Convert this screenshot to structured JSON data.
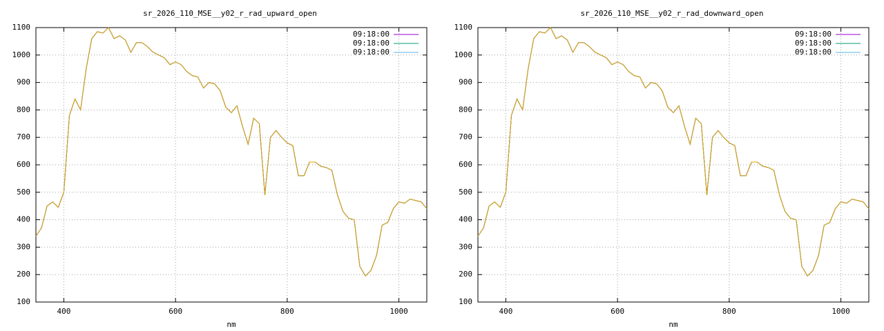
{
  "chart_data": [
    {
      "type": "line",
      "title": "sr_2026_110_MSE__y02_r_rad_upward_open",
      "x_label": "nm",
      "x": [
        350,
        360,
        370,
        380,
        390,
        400,
        410,
        420,
        430,
        440,
        450,
        460,
        470,
        480,
        490,
        500,
        510,
        520,
        530,
        540,
        550,
        560,
        570,
        580,
        590,
        600,
        610,
        620,
        630,
        640,
        650,
        660,
        670,
        680,
        690,
        700,
        710,
        720,
        730,
        740,
        750,
        760,
        770,
        780,
        790,
        800,
        810,
        820,
        830,
        840,
        850,
        860,
        870,
        880,
        890,
        900,
        910,
        920,
        930,
        940,
        950,
        960,
        970,
        980,
        990,
        1000,
        1010,
        1020,
        1030,
        1040,
        1050
      ],
      "series": [
        {
          "name": "09:18:00",
          "color": "#9400d3",
          "values": [
            340,
            370,
            450,
            465,
            445,
            500,
            780,
            840,
            800,
            950,
            1060,
            1085,
            1080,
            1100,
            1060,
            1070,
            1055,
            1010,
            1045,
            1045,
            1030,
            1010,
            1000,
            990,
            965,
            975,
            965,
            940,
            925,
            920,
            880,
            900,
            895,
            870,
            810,
            790,
            815,
            740,
            675,
            770,
            750,
            490,
            700,
            725,
            700,
            680,
            670,
            560,
            560,
            610,
            610,
            595,
            590,
            580,
            490,
            430,
            405,
            400,
            230,
            195,
            215,
            270,
            380,
            390,
            440,
            465,
            460,
            475,
            470,
            465,
            440
          ]
        },
        {
          "name": "09:18:00",
          "color": "#009e73",
          "values": [
            340,
            370,
            450,
            465,
            445,
            500,
            780,
            840,
            800,
            950,
            1060,
            1085,
            1080,
            1100,
            1060,
            1070,
            1055,
            1010,
            1045,
            1045,
            1030,
            1010,
            1000,
            990,
            965,
            975,
            965,
            940,
            925,
            920,
            880,
            900,
            895,
            870,
            810,
            790,
            815,
            740,
            675,
            770,
            750,
            490,
            700,
            725,
            700,
            680,
            670,
            560,
            560,
            610,
            610,
            595,
            590,
            580,
            490,
            430,
            405,
            400,
            230,
            195,
            215,
            270,
            380,
            390,
            440,
            465,
            460,
            475,
            470,
            465,
            440
          ]
        },
        {
          "name": "09:18:00",
          "color": "#56b4e9",
          "values": [
            340,
            370,
            450,
            465,
            445,
            500,
            780,
            840,
            800,
            950,
            1060,
            1085,
            1080,
            1100,
            1060,
            1070,
            1055,
            1010,
            1045,
            1045,
            1030,
            1010,
            1000,
            990,
            965,
            975,
            965,
            940,
            925,
            920,
            880,
            900,
            895,
            870,
            810,
            790,
            815,
            740,
            675,
            770,
            750,
            490,
            700,
            725,
            700,
            680,
            670,
            560,
            560,
            610,
            610,
            595,
            590,
            580,
            490,
            430,
            405,
            400,
            230,
            195,
            215,
            270,
            380,
            390,
            440,
            465,
            460,
            475,
            470,
            465,
            440
          ]
        },
        {
          "color": "#e69f00",
          "values": [
            340,
            370,
            450,
            465,
            445,
            500,
            780,
            840,
            800,
            950,
            1060,
            1085,
            1080,
            1100,
            1060,
            1070,
            1055,
            1010,
            1045,
            1045,
            1030,
            1010,
            1000,
            990,
            965,
            975,
            965,
            940,
            925,
            920,
            880,
            900,
            895,
            870,
            810,
            790,
            815,
            740,
            675,
            770,
            750,
            490,
            700,
            725,
            700,
            680,
            670,
            560,
            560,
            610,
            610,
            595,
            590,
            580,
            490,
            430,
            405,
            400,
            230,
            195,
            215,
            270,
            380,
            390,
            440,
            465,
            460,
            475,
            470,
            465,
            440
          ]
        }
      ],
      "xlim": [
        350,
        1050
      ],
      "ylim": [
        100,
        1100
      ],
      "xticks": [
        400,
        600,
        800,
        1000
      ],
      "yticks": [
        100,
        200,
        300,
        400,
        500,
        600,
        700,
        800,
        900,
        1000,
        1100
      ],
      "grid": true,
      "legend": "upper right"
    },
    {
      "type": "line",
      "title": "sr_2026_110_MSE__y02_r_rad_downward_open",
      "x_label": "nm",
      "x": [
        350,
        360,
        370,
        380,
        390,
        400,
        410,
        420,
        430,
        440,
        450,
        460,
        470,
        480,
        490,
        500,
        510,
        520,
        530,
        540,
        550,
        560,
        570,
        580,
        590,
        600,
        610,
        620,
        630,
        640,
        650,
        660,
        670,
        680,
        690,
        700,
        710,
        720,
        730,
        740,
        750,
        760,
        770,
        780,
        790,
        800,
        810,
        820,
        830,
        840,
        850,
        860,
        870,
        880,
        890,
        900,
        910,
        920,
        930,
        940,
        950,
        960,
        970,
        980,
        990,
        1000,
        1010,
        1020,
        1030,
        1040,
        1050
      ],
      "series": [
        {
          "name": "09:18:00",
          "color": "#9400d3",
          "values": [
            340,
            370,
            450,
            465,
            445,
            500,
            780,
            840,
            800,
            950,
            1060,
            1085,
            1080,
            1100,
            1060,
            1070,
            1055,
            1010,
            1045,
            1045,
            1030,
            1010,
            1000,
            990,
            965,
            975,
            965,
            940,
            925,
            920,
            880,
            900,
            895,
            870,
            810,
            790,
            815,
            740,
            675,
            770,
            750,
            490,
            700,
            725,
            700,
            680,
            670,
            560,
            560,
            610,
            610,
            595,
            590,
            580,
            490,
            430,
            405,
            400,
            230,
            195,
            215,
            270,
            380,
            390,
            440,
            465,
            460,
            475,
            470,
            465,
            440
          ]
        },
        {
          "name": "09:18:00",
          "color": "#009e73",
          "values": [
            340,
            370,
            450,
            465,
            445,
            500,
            780,
            840,
            800,
            950,
            1060,
            1085,
            1080,
            1100,
            1060,
            1070,
            1055,
            1010,
            1045,
            1045,
            1030,
            1010,
            1000,
            990,
            965,
            975,
            965,
            940,
            925,
            920,
            880,
            900,
            895,
            870,
            810,
            790,
            815,
            740,
            675,
            770,
            750,
            490,
            700,
            725,
            700,
            680,
            670,
            560,
            560,
            610,
            610,
            595,
            590,
            580,
            490,
            430,
            405,
            400,
            230,
            195,
            215,
            270,
            380,
            390,
            440,
            465,
            460,
            475,
            470,
            465,
            440
          ]
        },
        {
          "name": "09:18:00",
          "color": "#56b4e9",
          "values": [
            340,
            370,
            450,
            465,
            445,
            500,
            780,
            840,
            800,
            950,
            1060,
            1085,
            1080,
            1100,
            1060,
            1070,
            1055,
            1010,
            1045,
            1045,
            1030,
            1010,
            1000,
            990,
            965,
            975,
            965,
            940,
            925,
            920,
            880,
            900,
            895,
            870,
            810,
            790,
            815,
            740,
            675,
            770,
            750,
            490,
            700,
            725,
            700,
            680,
            670,
            560,
            560,
            610,
            610,
            595,
            590,
            580,
            490,
            430,
            405,
            400,
            230,
            195,
            215,
            270,
            380,
            390,
            440,
            465,
            460,
            475,
            470,
            465,
            440
          ]
        },
        {
          "color": "#e69f00",
          "values": [
            340,
            370,
            450,
            465,
            445,
            500,
            780,
            840,
            800,
            950,
            1060,
            1085,
            1080,
            1100,
            1060,
            1070,
            1055,
            1010,
            1045,
            1045,
            1030,
            1010,
            1000,
            990,
            965,
            975,
            965,
            940,
            925,
            920,
            880,
            900,
            895,
            870,
            810,
            790,
            815,
            740,
            675,
            770,
            750,
            490,
            700,
            725,
            700,
            680,
            670,
            560,
            560,
            610,
            610,
            595,
            590,
            580,
            490,
            430,
            405,
            400,
            230,
            195,
            215,
            270,
            380,
            390,
            440,
            465,
            460,
            475,
            470,
            465,
            440
          ]
        }
      ],
      "xlim": [
        350,
        1050
      ],
      "ylim": [
        100,
        1100
      ],
      "xticks": [
        400,
        600,
        800,
        1000
      ],
      "yticks": [
        100,
        200,
        300,
        400,
        500,
        600,
        700,
        800,
        900,
        1000,
        1100
      ],
      "grid": true,
      "legend": "upper right"
    }
  ]
}
